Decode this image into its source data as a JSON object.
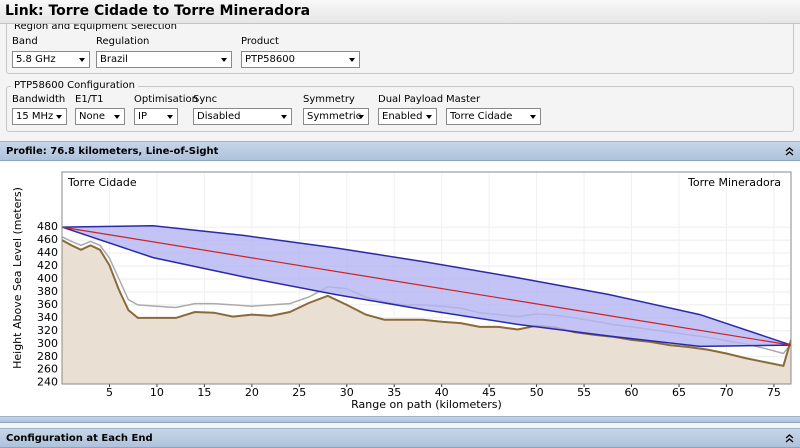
{
  "header": {
    "title": "Link: Torre Cidade to Torre Mineradora"
  },
  "region_section": {
    "legend": "Region and Equipment Selection",
    "fields": [
      {
        "label": "Band",
        "value": "5.8 GHz"
      },
      {
        "label": "Regulation",
        "value": "Brazil"
      },
      {
        "label": "Product",
        "value": "PTP58600"
      }
    ]
  },
  "config_section": {
    "legend": "PTP58600 Configuration",
    "fields": [
      {
        "label": "Bandwidth",
        "value": "15 MHz"
      },
      {
        "label": "E1/T1",
        "value": "None"
      },
      {
        "label": "Optimisation",
        "value": "IP"
      },
      {
        "label": "Sync",
        "value": "Disabled"
      },
      {
        "label": "Symmetry",
        "value": "Symmetric"
      },
      {
        "label": "Dual Payload",
        "value": "Enabled"
      },
      {
        "label": "Master",
        "value": "Torre Cidade"
      }
    ]
  },
  "profile_panel": {
    "title": "Profile: 76.8 kilometers, Line-of-Sight"
  },
  "chart_data": {
    "type": "line",
    "left_label": "Torre Cidade",
    "right_label": "Torre Mineradora",
    "xlabel": "Range on path (kilometers)",
    "ylabel": "Height Above Sea Level (meters)",
    "x": [
      0,
      1,
      2,
      3,
      4,
      5,
      6,
      7,
      8,
      10,
      12,
      14,
      16,
      18,
      20,
      22,
      24,
      26,
      28,
      30,
      32,
      34,
      36,
      38,
      40,
      42,
      44,
      46,
      48,
      50,
      52,
      54,
      56,
      58,
      60,
      62,
      64,
      66,
      68,
      70,
      72,
      74,
      76,
      76.8
    ],
    "series": [
      {
        "color": "#8b6a3a",
        "fill": "#eadfd3",
        "values": [
          460,
          452,
          445,
          452,
          445,
          421,
          383,
          352,
          340,
          340,
          340,
          349,
          348,
          342,
          345,
          343,
          349,
          363,
          374,
          360,
          345,
          337,
          337,
          337,
          334,
          332,
          326,
          326,
          322,
          328,
          325,
          318,
          314,
          311,
          306,
          303,
          298,
          295,
          291,
          285,
          278,
          272,
          266,
          306
        ]
      },
      {
        "color": "#aaaaaa",
        "values": [
          465,
          458,
          452,
          458,
          452,
          432,
          400,
          368,
          360,
          358,
          356,
          362,
          362,
          360,
          358,
          360,
          362,
          372,
          388,
          385,
          372,
          365,
          360,
          360,
          358,
          355,
          348,
          345,
          342,
          346,
          344,
          340,
          335,
          330,
          326,
          322,
          318,
          314,
          310,
          305,
          300,
          293,
          285,
          300
        ]
      }
    ],
    "line_of_sight": {
      "color": "#cc2222",
      "x": [
        0,
        76.8
      ],
      "values": [
        480,
        298
      ]
    },
    "fresnel_zone": {
      "color": "#2a2aa8",
      "fill": "#b4b4f2",
      "x": [
        0,
        9.6,
        19.2,
        28.8,
        38.4,
        48,
        57.6,
        67.2,
        76.8
      ],
      "upper": [
        480,
        482,
        467,
        448,
        426,
        402,
        376,
        345,
        298
      ],
      "lower": [
        480,
        433,
        403,
        376,
        352,
        330,
        312,
        296,
        298
      ]
    },
    "xlim": [
      0,
      76.8
    ],
    "ylim": [
      238,
      565
    ],
    "xticks": [
      5,
      10,
      15,
      20,
      25,
      30,
      35,
      40,
      45,
      50,
      55,
      60,
      65,
      70,
      75
    ],
    "yticks": [
      240,
      260,
      280,
      300,
      320,
      340,
      360,
      380,
      400,
      420,
      440,
      460,
      480
    ],
    "grid": true
  },
  "bottom_panel": {
    "title": "Configuration at Each End"
  }
}
